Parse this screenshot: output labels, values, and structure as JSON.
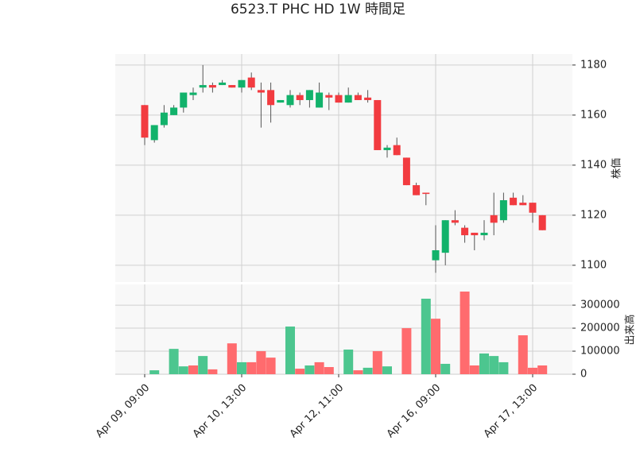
{
  "chart_data": [
    {
      "type": "candlestick",
      "title": "6523.T PHC HD 1W 時間足",
      "ylabel": "株価",
      "categories": [
        "Apr 09, 09:00",
        null,
        null,
        null,
        null,
        null,
        null,
        null,
        null,
        null,
        "Apr 10, 13:00",
        null,
        null,
        null,
        null,
        null,
        null,
        null,
        null,
        null,
        "Apr 12, 11:00",
        null,
        null,
        null,
        null,
        null,
        null,
        null,
        null,
        null,
        "Apr 16, 09:00",
        null,
        null,
        null,
        null,
        null,
        null,
        null,
        null,
        null,
        "Apr 17, 13:00",
        null
      ],
      "open": [
        1164,
        1150,
        1156,
        1160,
        1163,
        1168,
        1171,
        1172,
        1172,
        1172,
        1171,
        1175,
        1170,
        1170,
        1165,
        1164,
        1168,
        1166,
        1163,
        1168,
        1168,
        1165,
        1168,
        1167,
        1166,
        1146,
        1148,
        1143,
        1132,
        1129,
        1102,
        1105,
        1118,
        1115,
        1113,
        1112,
        1120,
        1118,
        1127,
        1125,
        1125,
        1120
      ],
      "high": [
        1164,
        1156,
        1164,
        1164,
        1169,
        1171,
        1180,
        1173,
        1174,
        1172,
        1174,
        1177,
        1173,
        1173,
        1166,
        1170,
        1169,
        1170,
        1173,
        1169,
        1169,
        1171,
        1169,
        1170,
        1166,
        1148,
        1151,
        1143,
        1133,
        1129,
        1116,
        1118,
        1122,
        1116,
        1113,
        1118,
        1129,
        1129,
        1129,
        1128,
        1125,
        1120
      ],
      "low": [
        1148,
        1149,
        1155,
        1160,
        1161,
        1166,
        1169,
        1169,
        1172,
        1171,
        1169,
        1170,
        1155,
        1157,
        1165,
        1163,
        1164,
        1163,
        1163,
        1162,
        1165,
        1165,
        1166,
        1165,
        1146,
        1143,
        1144,
        1132,
        1128,
        1124,
        1097,
        1100,
        1116,
        1109,
        1106,
        1110,
        1112,
        1117,
        1124,
        1124,
        1117,
        1114
      ],
      "close": [
        1151,
        1156,
        1161,
        1163,
        1169,
        1169,
        1172,
        1171,
        1173,
        1171,
        1174,
        1171,
        1169,
        1164,
        1166,
        1168,
        1166,
        1170,
        1169,
        1167,
        1165,
        1168,
        1166,
        1166,
        1146,
        1147,
        1144,
        1132,
        1128,
        1128.5,
        1106,
        1118,
        1117,
        1112,
        1112,
        1113,
        1117,
        1126,
        1124,
        1124,
        1121,
        1114
      ],
      "up_color": "#12b26b",
      "down_color": "#f23b40",
      "ylim": [
        1093.3,
        1184.4
      ],
      "yticks": [
        1100,
        1120,
        1140,
        1160,
        1180
      ],
      "grid": true
    },
    {
      "type": "bar",
      "ylabel": "出来高",
      "values": [
        0,
        17000,
        0,
        110000,
        34000,
        38000,
        79000,
        21000,
        0,
        134000,
        52000,
        52000,
        100000,
        72000,
        0,
        207000,
        24000,
        38000,
        52000,
        31000,
        0,
        107000,
        17000,
        28000,
        100000,
        34000,
        0,
        200000,
        0,
        328000,
        241000,
        45000,
        0,
        359000,
        38000,
        90000,
        79000,
        52000,
        0,
        169000,
        28000,
        38000
      ],
      "colors": [
        "#4cc68f",
        "#4cc68f",
        "#4cc68f",
        "#4cc68f",
        "#4cc68f",
        "#ff6b6e",
        "#4cc68f",
        "#ff6b6e",
        "#4cc68f",
        "#ff6b6e",
        "#4cc68f",
        "#ff6b6e",
        "#ff6b6e",
        "#ff6b6e",
        "#4cc68f",
        "#4cc68f",
        "#ff6b6e",
        "#4cc68f",
        "#ff6b6e",
        "#ff6b6e",
        "#4cc68f",
        "#4cc68f",
        "#ff6b6e",
        "#4cc68f",
        "#ff6b6e",
        "#4cc68f",
        "#4cc68f",
        "#ff6b6e",
        "#4cc68f",
        "#4cc68f",
        "#ff6b6e",
        "#4cc68f",
        "#4cc68f",
        "#ff6b6e",
        "#ff6b6e",
        "#4cc68f",
        "#4cc68f",
        "#4cc68f",
        "#4cc68f",
        "#ff6b6e",
        "#ff6b6e",
        "#ff6b6e"
      ],
      "ylim": [
        0,
        390000
      ],
      "yticks": [
        0,
        100000,
        200000,
        300000
      ],
      "grid": true
    }
  ]
}
